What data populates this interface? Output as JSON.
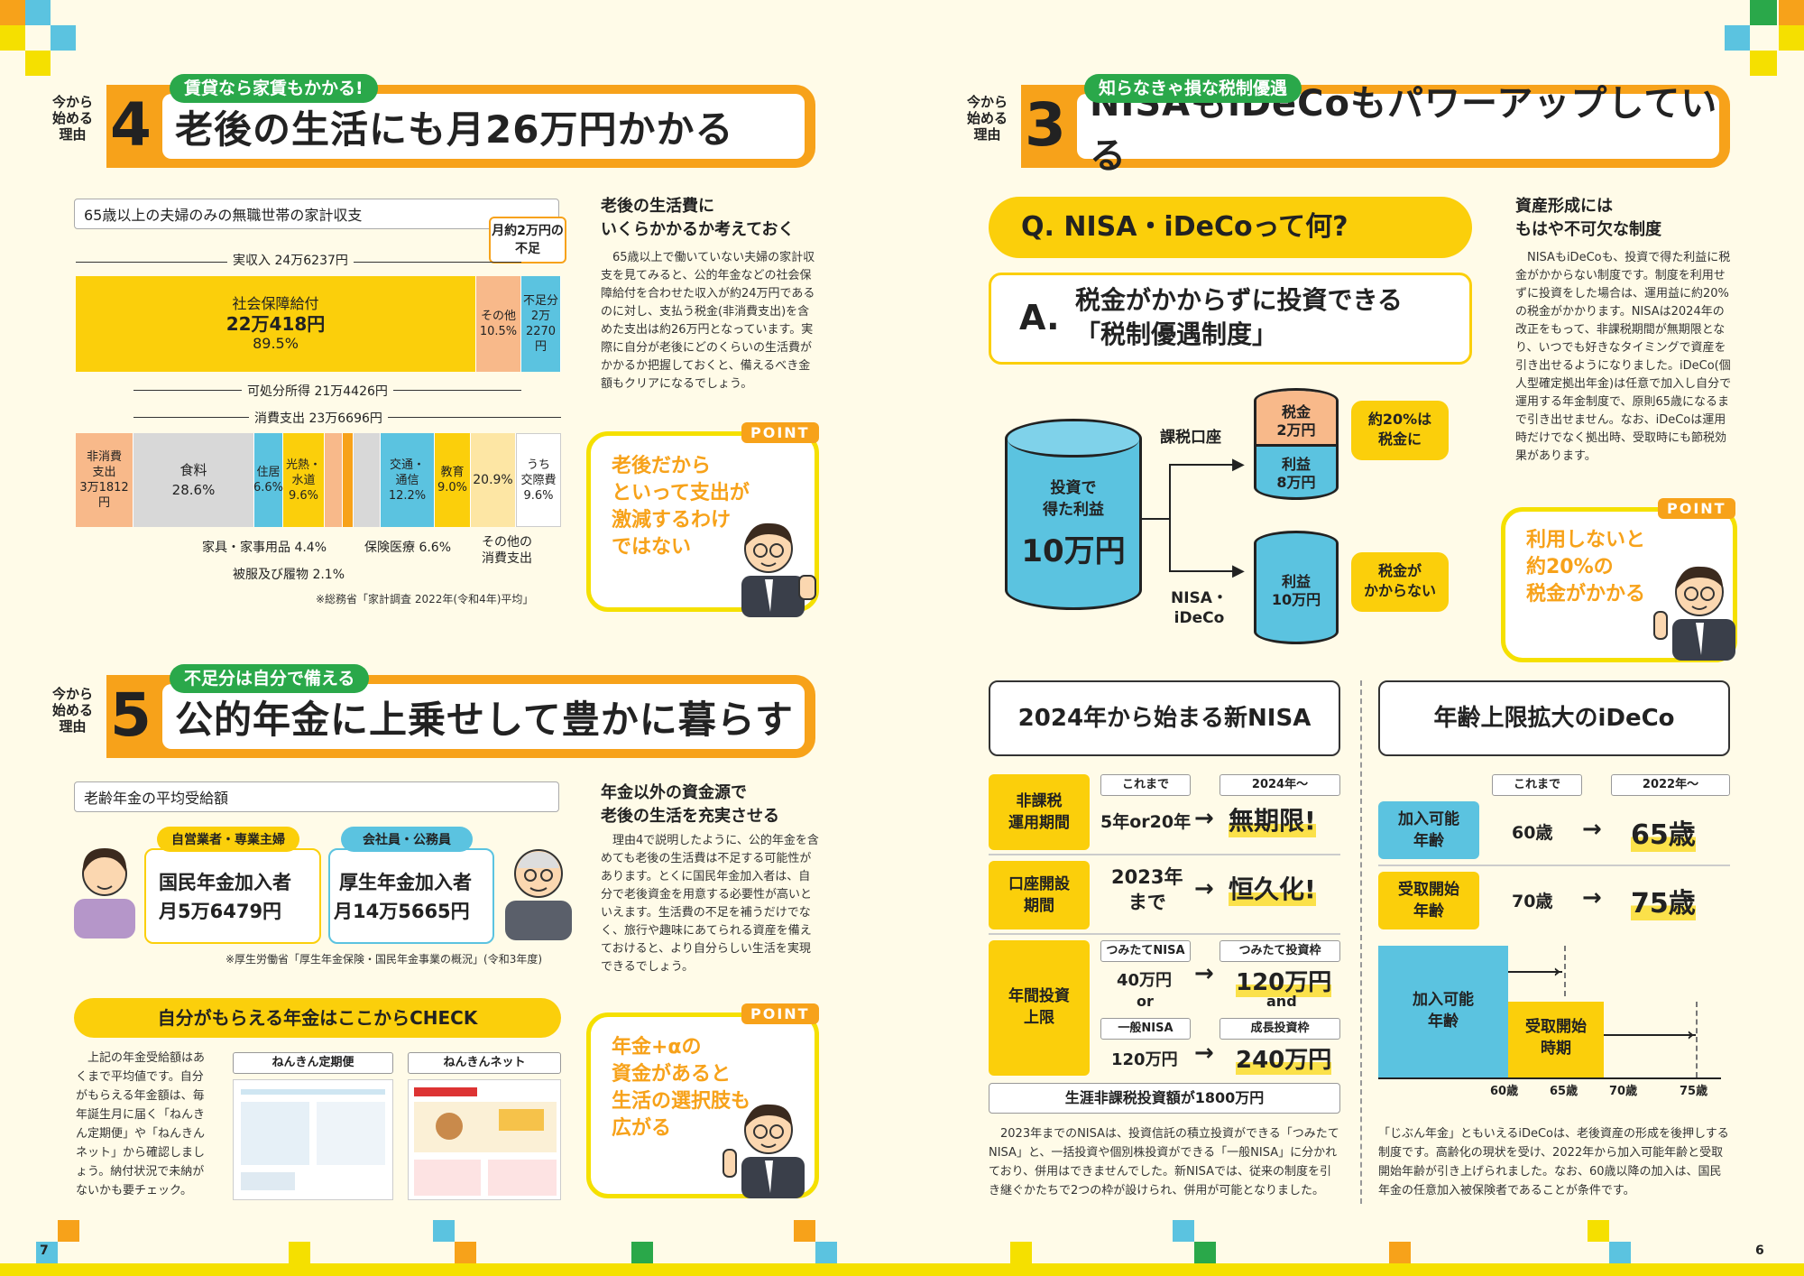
{
  "left": {
    "sec4": {
      "side": [
        "今から",
        "始める",
        "理由"
      ],
      "num": "4",
      "tag": "賃貸なら家賃もかかる!",
      "title": "老後の生活にも月26万円かかる",
      "chart_label": "65歳以上の夫婦のみの無職世帯の家計収支",
      "shortfall_note": "月約2万円の不足",
      "income_label": "実収入 24万6237円",
      "bar1": {
        "social": [
          "社会保障給付",
          "22万418円",
          "89.5%"
        ],
        "other": [
          "その他",
          "10.5%"
        ],
        "shortfall": [
          "不足分",
          "2万",
          "2270円"
        ]
      },
      "disposable_label": "可処分所得 21万4426円",
      "consumption_label": "消費支出 23万6696円",
      "bar2": {
        "nontax": [
          "非消費",
          "支出",
          "3万1812円"
        ],
        "food": [
          "食料",
          "28.6%"
        ],
        "housing": [
          "住居",
          "6.6%"
        ],
        "utility": [
          "光熱・",
          "水道",
          "9.6%"
        ],
        "transport": [
          "交通・",
          "通信",
          "12.2%"
        ],
        "education": [
          "教育",
          "9.0%"
        ],
        "other": "20.9%",
        "social_exp": [
          "うち",
          "交際費",
          "9.6%"
        ]
      },
      "callouts": {
        "furniture": "家具・家事用品 4.4%",
        "clothes": "被服及び履物 2.1%",
        "medical": "保険医療 6.6%",
        "other_exp": [
          "その他の",
          "消費支出"
        ]
      },
      "source": "※総務省「家計調査 2022年(令和4年)平均」",
      "subtitle": [
        "老後の生活費に",
        "いくらかかるか考えておく"
      ],
      "body": "65歳以上で働いていない夫婦の家計収支を見てみると、公的年金などの社会保障給付を合わせた収入が約24万円であるのに対し、支払う税金(非消費支出)を含めた支出は約26万円となっています。実際に自分が老後にどのくらいの生活費がかかるか把握しておくと、備えるべき金額もクリアになるでしょう。",
      "point_tag": "POINT",
      "point_text": [
        "老後だから",
        "といって支出が",
        "激減するわけ",
        "ではない"
      ]
    },
    "sec5": {
      "side": [
        "今から",
        "始める",
        "理由"
      ],
      "num": "5",
      "tag": "不足分は自分で備える",
      "title": "公的年金に上乗せして豊かに暮らす",
      "avg_label": "老齢年金の平均受給額",
      "self": {
        "tag": "自営業者・専業主婦",
        "line1": "国民年金加入者",
        "line2": "月5万6479円"
      },
      "emp": {
        "tag": "会社員・公務員",
        "line1": "厚生年金加入者",
        "line2": "月14万5665円"
      },
      "source": "※厚生労働省「厚生年金保険・国民年金事業の概況」(令和3年度)",
      "check_title": "自分がもらえる年金はここからCHECK",
      "check_body": "上記の年金受給額はあくまで平均値です。自分がもらえる年金額は、毎年誕生月に届く「ねんきん定期便」や「ねんきんネット」から確認しましょう。納付状況で未納がないかも要チェック。",
      "teiki_label": "ねんきん定期便",
      "net_label": "ねんきんネット",
      "subtitle": [
        "年金以外の資金源で",
        "老後の生活を充実させる"
      ],
      "body": "理由4で説明したように、公的年金を含めても老後の生活費は不足する可能性があります。とくに国民年金加入者は、自分で老後資金を用意する必要性が高いといえます。生活費の不足を補うだけでなく、旅行や趣味にあてられる資産を備えておけると、より自分らしい生活を実現できるでしょう。",
      "point_tag": "POINT",
      "point_text": [
        "年金+αの",
        "資金があると",
        "生活の選択肢も",
        "広がる"
      ]
    },
    "page_num": "7"
  },
  "right": {
    "sec3": {
      "side": [
        "今から",
        "始める",
        "理由"
      ],
      "num": "3",
      "tag": "知らなきゃ損な税制優遇",
      "title": "NISAもiDeCoもパワーアップしている",
      "q": "Q. NISA・iDeCoって何?",
      "a_mark": "A.",
      "a_text": [
        "税金がかからずに投資できる",
        "「税制優遇制度」"
      ],
      "invest": [
        "投資で",
        "得た利益",
        "10万円"
      ],
      "taxed_account": "課税口座",
      "tax": [
        "税金",
        "2万円"
      ],
      "profit1": [
        "利益",
        "8万円"
      ],
      "tax_note": [
        "約20%は",
        "税金に"
      ],
      "nisa_label": [
        "NISA・",
        "iDeCo"
      ],
      "profit2": [
        "利益",
        "10万円"
      ],
      "notax_note": [
        "税金が",
        "かからない"
      ],
      "subtitle": [
        "資産形成には",
        "もはや不可欠な制度"
      ],
      "body": "NISAもiDeCoも、投資で得た利益に税金がかからない制度です。制度を利用せずに投資をした場合は、運用益に約20%の税金がかかります。NISAは2024年の改正をもって、非課税期間が無期限となり、いつでも好きなタイミングで資産を引き出せるようになりました。iDeCo(個人型確定拠出年金)は任意で加入し自分で運用する年金制度で、原則65歳になるまで引き出せません。なお、iDeCoは運用時だけでなく拠出時、受取時にも節税効果があります。",
      "point_tag": "POINT",
      "point_text": [
        "利用しないと",
        "約20%の",
        "税金がかかる"
      ]
    },
    "nisa": {
      "title": "2024年から始まる新NISA",
      "col_before": "これまで",
      "col_after": "2024年〜",
      "row1": {
        "label": [
          "非課税",
          "運用期間"
        ],
        "before": "5年or20年",
        "after": "無期限!"
      },
      "row2": {
        "label": [
          "口座開設",
          "期間"
        ],
        "before": [
          "2023年",
          "まで"
        ],
        "after": "恒久化!"
      },
      "row3": {
        "label": [
          "年間投資",
          "上限"
        ],
        "tsumitate": "つみたてNISA",
        "tsumitate_val": "40万円",
        "or": "or",
        "ippan": "一般NISA",
        "ippan_val": "120万円",
        "tw_frame": "つみたて投資枠",
        "tw_val": "120万円",
        "and": "and",
        "growth_frame": "成長投資枠",
        "growth_val": "240万円"
      },
      "lifetime": "生涯非課税投資額が1800万円",
      "body": "2023年までのNISAは、投資信託の積立投資ができる「つみたてNISA」と、一括投資や個別株投資ができる「一般NISA」に分かれており、併用はできませんでした。新NISAでは、従来の制度を引き継ぐかたちで2つの枠が設けられ、併用が可能となりました。"
    },
    "ideco": {
      "title": "年齢上限拡大のiDeCo",
      "col_before": "これまで",
      "col_after": "2022年〜",
      "row1": {
        "label": [
          "加入可能",
          "年齢"
        ],
        "before": "60歳",
        "after": "65歳"
      },
      "row2": {
        "label": [
          "受取開始",
          "年齢"
        ],
        "before": "70歳",
        "after": "75歳"
      },
      "bar_join": [
        "加入可能",
        "年齢"
      ],
      "bar_recv": [
        "受取開始",
        "時期"
      ],
      "ages": [
        "60歳",
        "65歳",
        "70歳",
        "75歳"
      ],
      "body": "「じぶん年金」ともいえるiDeCoは、老後資産の形成を後押しする制度です。高齢化の現状を受け、2022年から加入可能年齢と受取開始年齢が引き上げられました。なお、60歳以降の加入は、国民年金の任意加入被保険者であることが条件です。"
    },
    "page_num": "6"
  },
  "colors": {
    "orange": "#f7a21a",
    "yellow": "#fbcf0b",
    "blue": "#5bc3e0",
    "green": "#2aa84a",
    "peach": "#f8b98a"
  }
}
